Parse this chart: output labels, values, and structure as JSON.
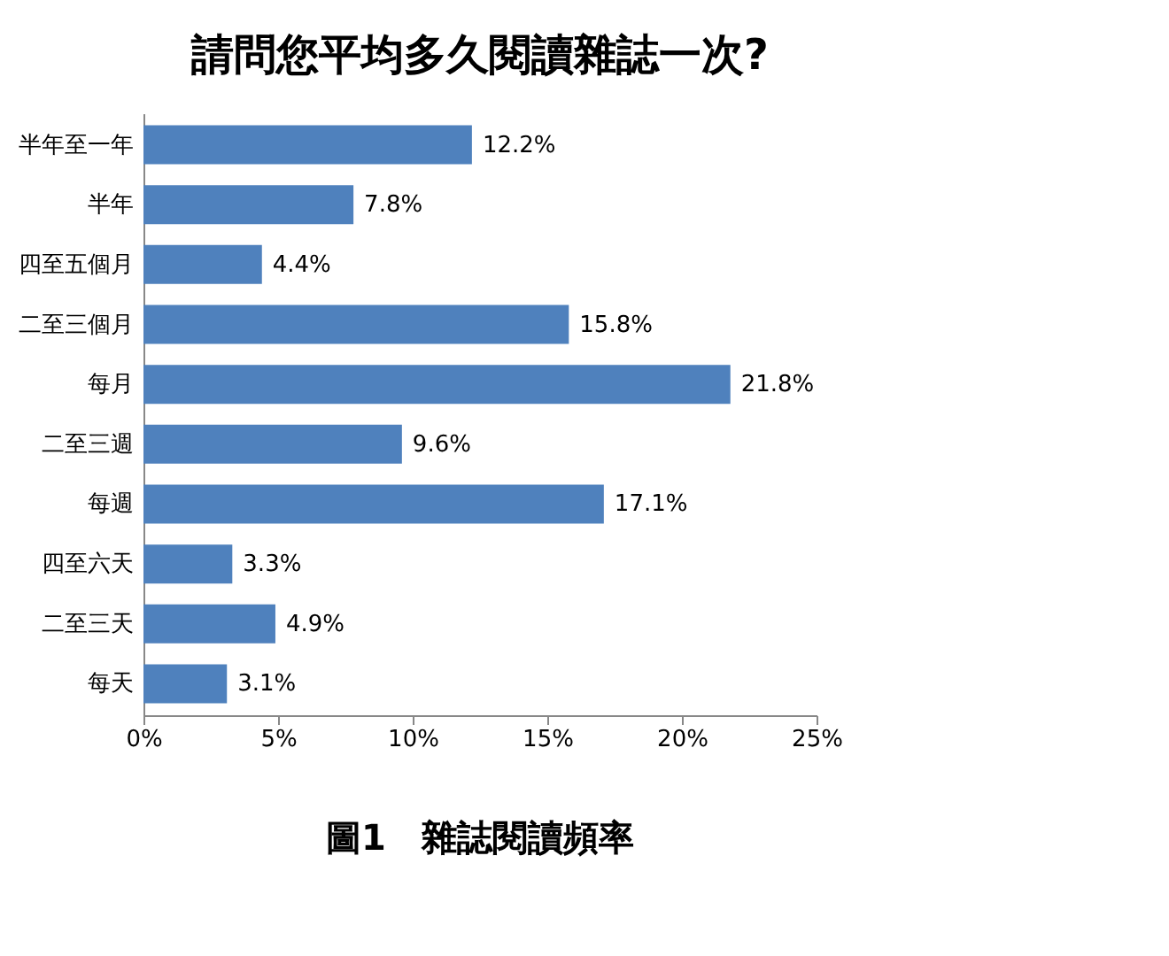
{
  "chart_data": {
    "type": "bar",
    "orientation": "horizontal",
    "title": "請問您平均多久閱讀雜誌一次?",
    "categories": [
      "半年至一年",
      "半年",
      "四至五個月",
      "二至三個月",
      "每月",
      "二至三週",
      "每週",
      "四至六天",
      "二至三天",
      "每天"
    ],
    "values": [
      12.2,
      7.8,
      4.4,
      15.8,
      21.8,
      9.6,
      17.1,
      3.3,
      4.9,
      3.1
    ],
    "value_labels": [
      "12.2%",
      "7.8%",
      "4.4%",
      "15.8%",
      "21.8%",
      "9.6%",
      "17.1%",
      "3.3%",
      "4.9%",
      "3.1%"
    ],
    "color": "#4f81bd",
    "xlim": [
      0,
      25
    ],
    "xticks": [
      {
        "value": 0,
        "label": "0%"
      },
      {
        "value": 5,
        "label": "5%"
      },
      {
        "value": 10,
        "label": "10%"
      },
      {
        "value": 15,
        "label": "15%"
      },
      {
        "value": 20,
        "label": "20%"
      },
      {
        "value": 25,
        "label": "25%"
      }
    ],
    "grid": false,
    "annotations": [
      "圖1　雜誌閱讀頻率"
    ]
  }
}
